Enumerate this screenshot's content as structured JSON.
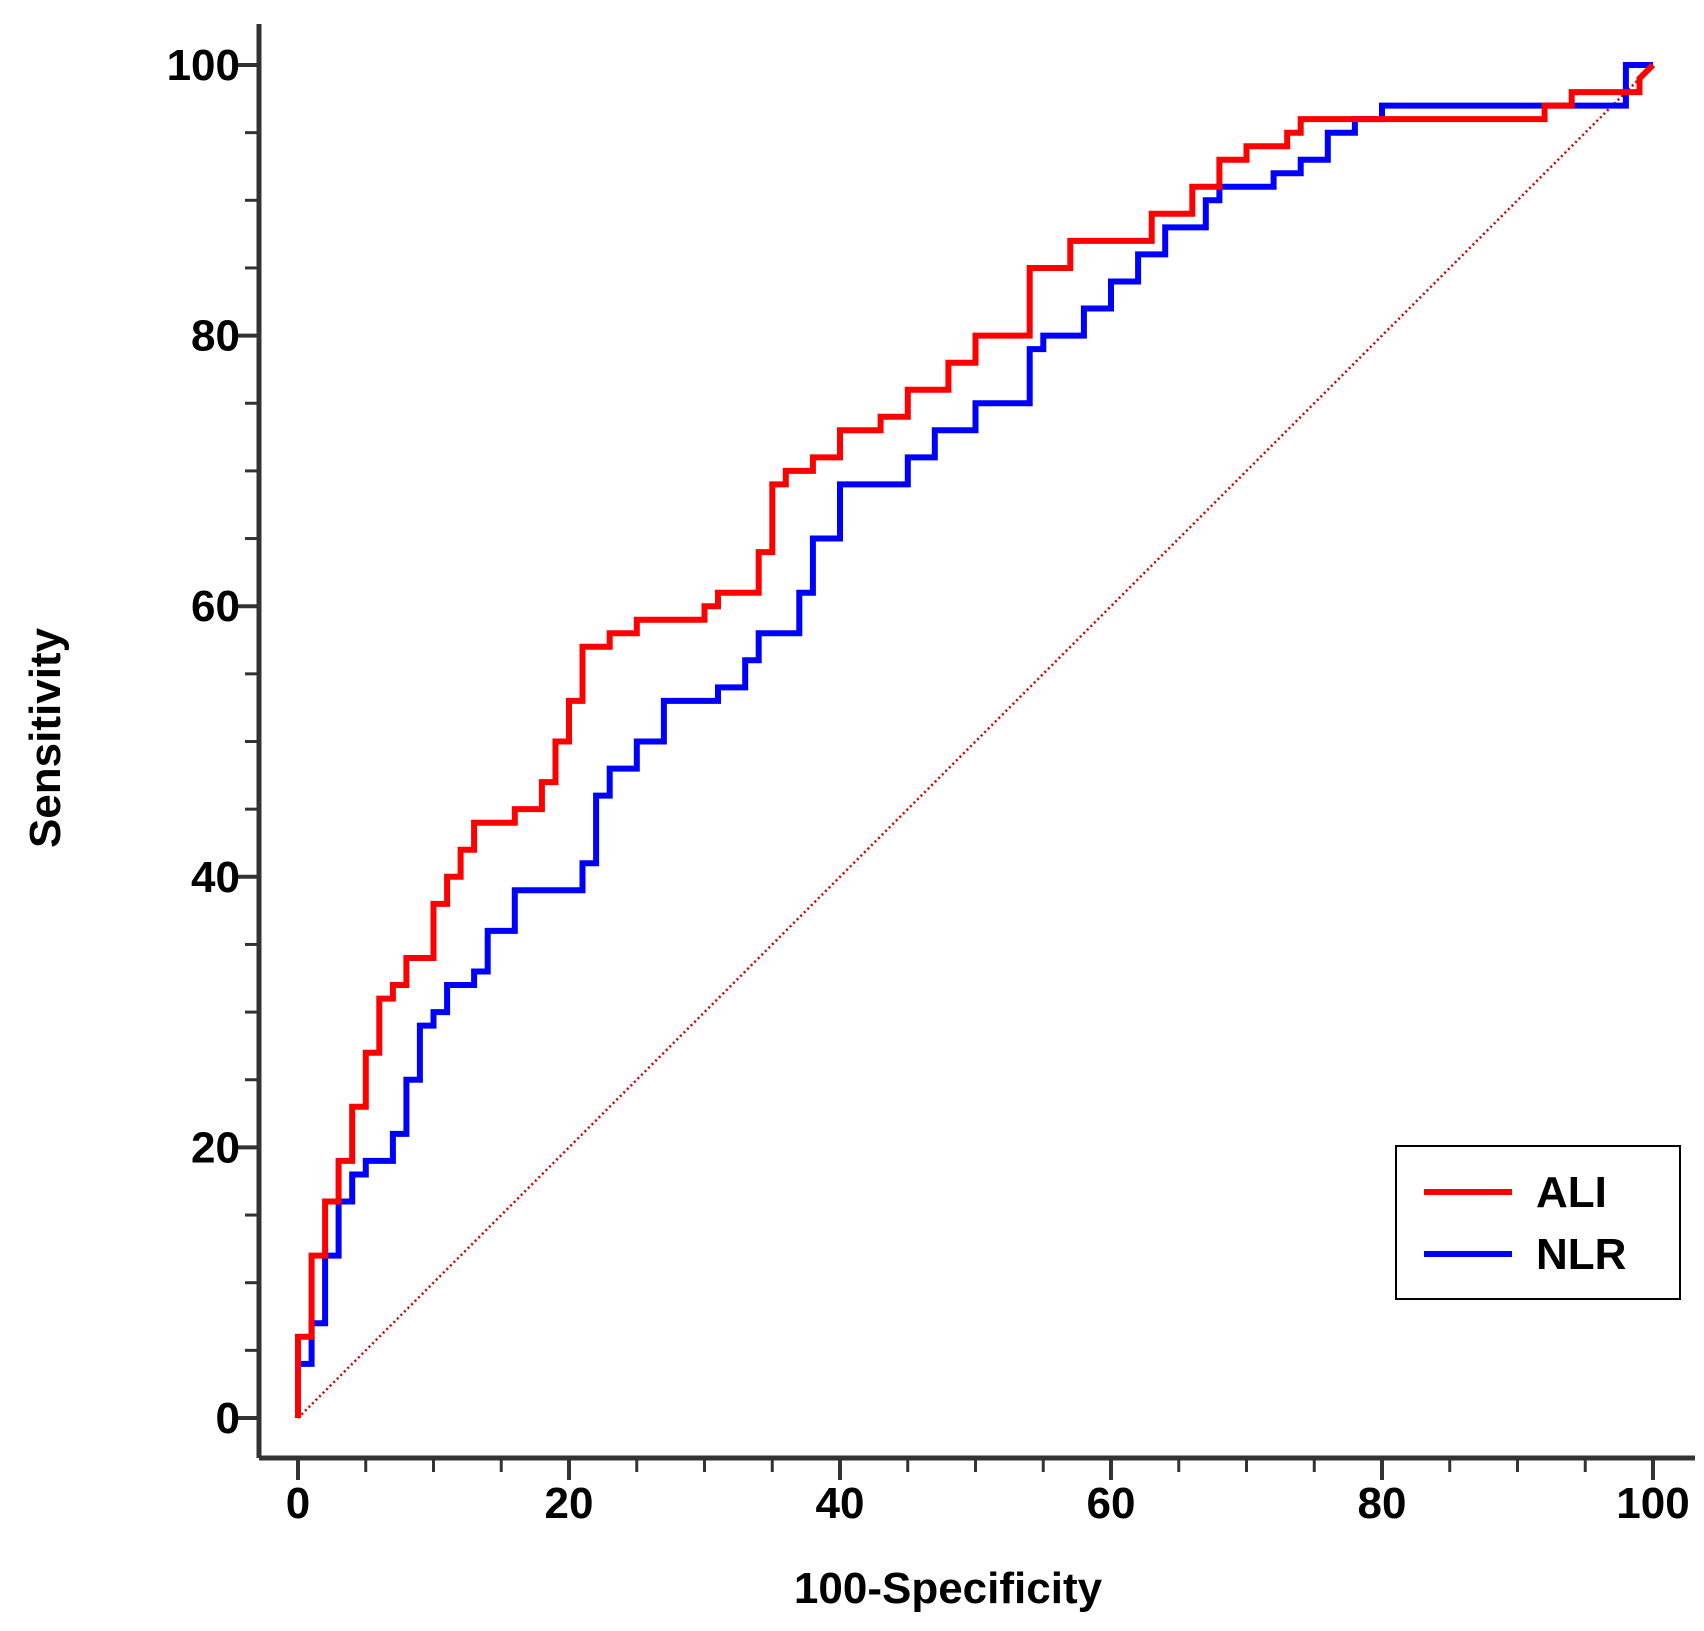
{
  "chart_data": {
    "type": "line",
    "title": "",
    "xlabel": "100-Specificity",
    "ylabel": "Sensitivity",
    "xlim": [
      0,
      100
    ],
    "ylim": [
      0,
      100
    ],
    "x_ticks": [
      "0",
      "20",
      "40",
      "60",
      "80",
      "100"
    ],
    "y_ticks": [
      "0",
      "20",
      "40",
      "60",
      "80",
      "100"
    ],
    "grid": false,
    "legend_position": "bottom-right",
    "reference_line": {
      "x": [
        0,
        100
      ],
      "y": [
        0,
        100
      ],
      "style": "dotted",
      "color": "#cc0000"
    },
    "series": [
      {
        "name": "ALI",
        "color": "#ff0000",
        "x": [
          0,
          0,
          1,
          1,
          2,
          2,
          3,
          3,
          4,
          4,
          5,
          5,
          6,
          6,
          7,
          7,
          8,
          8,
          10,
          10,
          11,
          11,
          12,
          12,
          13,
          13,
          16,
          16,
          18,
          18,
          19,
          19,
          20,
          20,
          21,
          21,
          22,
          22,
          23,
          23,
          25,
          25,
          30,
          30,
          31,
          31,
          34,
          34,
          35,
          35,
          36,
          36,
          38,
          38,
          40,
          40,
          43,
          43,
          45,
          45,
          48,
          48,
          50,
          50,
          54,
          54,
          57,
          57,
          60,
          60,
          63,
          63,
          66,
          66,
          68,
          68,
          70,
          70,
          73,
          73,
          74,
          74,
          80,
          80,
          92,
          92,
          94,
          94,
          99,
          99,
          100
        ],
        "y": [
          0,
          6,
          6,
          12,
          12,
          16,
          16,
          19,
          19,
          23,
          23,
          27,
          27,
          31,
          31,
          32,
          32,
          34,
          34,
          38,
          38,
          40,
          40,
          42,
          42,
          44,
          44,
          45,
          45,
          47,
          47,
          50,
          50,
          53,
          53,
          57,
          57,
          57,
          57,
          58,
          58,
          59,
          59,
          60,
          60,
          61,
          61,
          64,
          64,
          69,
          69,
          70,
          70,
          71,
          71,
          73,
          73,
          74,
          74,
          76,
          76,
          78,
          78,
          80,
          80,
          85,
          85,
          87,
          87,
          87,
          87,
          89,
          89,
          91,
          91,
          93,
          93,
          94,
          94,
          95,
          95,
          96,
          96,
          96,
          96,
          97,
          97,
          98,
          98,
          99,
          100
        ]
      },
      {
        "name": "NLR",
        "color": "#0000ff",
        "x": [
          0,
          0,
          1,
          1,
          2,
          2,
          3,
          3,
          4,
          4,
          5,
          5,
          7,
          7,
          8,
          8,
          9,
          9,
          10,
          10,
          11,
          11,
          13,
          13,
          14,
          14,
          16,
          16,
          21,
          21,
          22,
          22,
          23,
          23,
          25,
          25,
          27,
          27,
          31,
          31,
          33,
          33,
          34,
          34,
          37,
          37,
          38,
          38,
          40,
          40,
          45,
          45,
          47,
          47,
          50,
          50,
          54,
          54,
          55,
          55,
          58,
          58,
          60,
          60,
          62,
          62,
          64,
          64,
          67,
          67,
          68,
          68,
          72,
          72,
          74,
          74,
          76,
          76,
          78,
          78,
          80,
          80,
          98,
          98,
          100
        ],
        "y": [
          0,
          4,
          4,
          7,
          7,
          12,
          12,
          16,
          16,
          18,
          18,
          19,
          19,
          21,
          21,
          25,
          25,
          29,
          29,
          30,
          30,
          32,
          32,
          33,
          33,
          36,
          36,
          39,
          39,
          41,
          41,
          46,
          46,
          48,
          48,
          50,
          50,
          53,
          53,
          54,
          54,
          56,
          56,
          58,
          58,
          61,
          61,
          65,
          65,
          69,
          69,
          71,
          71,
          73,
          73,
          75,
          75,
          79,
          79,
          80,
          80,
          82,
          82,
          84,
          84,
          86,
          86,
          88,
          88,
          90,
          90,
          91,
          91,
          92,
          92,
          93,
          93,
          95,
          95,
          96,
          96,
          97,
          97,
          100,
          100
        ]
      }
    ]
  }
}
